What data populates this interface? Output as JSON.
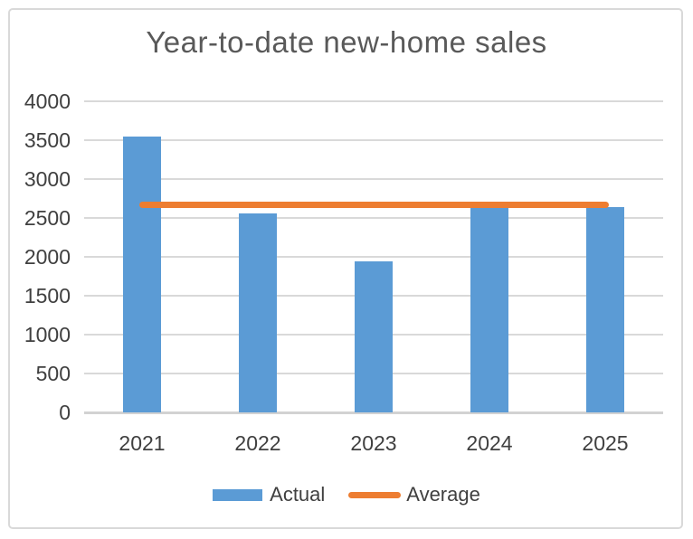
{
  "chart_data": {
    "type": "bar",
    "title": "Year-to-date new-home sales",
    "categories": [
      "2021",
      "2022",
      "2023",
      "2024",
      "2025"
    ],
    "series": [
      {
        "name": "Actual",
        "type": "bar",
        "color": "#5b9bd5",
        "values": [
          3550,
          2560,
          1940,
          2660,
          2640
        ]
      },
      {
        "name": "Average",
        "type": "line",
        "color": "#ed7d31",
        "values": [
          2670,
          2670,
          2670,
          2670,
          2670
        ]
      }
    ],
    "xlabel": "",
    "ylabel": "",
    "ylim": [
      0,
      4000
    ],
    "ytick_step": 500,
    "yticks": [
      0,
      500,
      1000,
      1500,
      2000,
      2500,
      3000,
      3500,
      4000
    ],
    "grid": true,
    "legend_position": "bottom",
    "colors": {
      "bar": "#5b9bd5",
      "line": "#ed7d31",
      "grid": "#d9d9d9",
      "axis": "#d2d2d2",
      "tick_text": "#404040",
      "title_text": "#595959",
      "border": "#d9d9d9",
      "background": "#ffffff"
    }
  }
}
